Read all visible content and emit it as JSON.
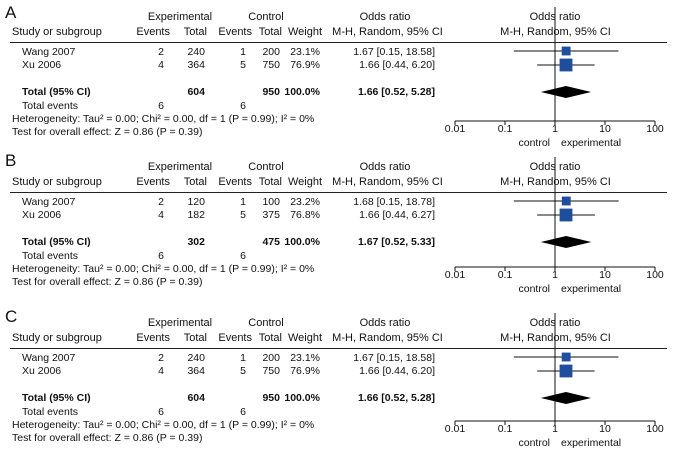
{
  "panels": [
    {
      "label": "A",
      "headers": {
        "experimental": "Experimental",
        "control": "Control",
        "or_main": "Odds ratio",
        "study": "Study or subgroup",
        "events_e": "Events",
        "total_e": "Total",
        "events_c": "Events",
        "total_c": "Total",
        "weight": "Weight",
        "method": "M-H, Random, 95% CI",
        "plot_title": "Odds ratio",
        "plot_method": "M-H, Random, 95% CI"
      },
      "studies": [
        {
          "name": "Wang 2007",
          "events_e": "2",
          "total_e": "240",
          "events_c": "1",
          "total_c": "200",
          "weight": "23.1%",
          "ci_text": "1.67 [0.15, 18.58]"
        },
        {
          "name": "Xu 2006",
          "events_e": "4",
          "total_e": "364",
          "events_c": "5",
          "total_c": "750",
          "weight": "76.9%",
          "ci_text": "1.66 [0.44, 6.20]"
        }
      ],
      "total": {
        "label": "Total (95% CI)",
        "total_e": "604",
        "total_c": "950",
        "weight": "100.0%",
        "ci_text": "1.66 [0.52, 5.28]"
      },
      "total_events": {
        "label": "Total events",
        "events_e": "6",
        "events_c": "6"
      },
      "heterogeneity": "Heterogeneity: Tau² = 0.00; Chi² = 0.00, df = 1 (P = 0.99); I² = 0%",
      "overall_effect": "Test for overall effect: Z = 0.86 (P = 0.39)",
      "axis_ticks": [
        "0.01",
        "0.1",
        "1",
        "10",
        "100"
      ],
      "axis_left_label": "control",
      "axis_right_label": "experimental"
    },
    {
      "label": "B",
      "headers": {
        "experimental": "Experimental",
        "control": "Control",
        "or_main": "Odds ratio",
        "study": "Study or subgroup",
        "events_e": "Events",
        "total_e": "Total",
        "events_c": "Events",
        "total_c": "Total",
        "weight": "Weight",
        "method": "M-H, Random, 95% CI",
        "plot_title": "Odds ratio",
        "plot_method": "M-H, Random, 95% CI"
      },
      "studies": [
        {
          "name": "Wang 2007",
          "events_e": "2",
          "total_e": "120",
          "events_c": "1",
          "total_c": "100",
          "weight": "23.2%",
          "ci_text": "1.68 [0.15, 18.78]"
        },
        {
          "name": "Xu 2006",
          "events_e": "4",
          "total_e": "182",
          "events_c": "5",
          "total_c": "375",
          "weight": "76.8%",
          "ci_text": "1.66 [0.44, 6.27]"
        }
      ],
      "total": {
        "label": "Total (95% CI)",
        "total_e": "302",
        "total_c": "475",
        "weight": "100.0%",
        "ci_text": "1.67 [0.52, 5.33]"
      },
      "total_events": {
        "label": "Total events",
        "events_e": "6",
        "events_c": "6"
      },
      "heterogeneity": "Heterogeneity: Tau² = 0.00; Chi² = 0.00, df = 1 (P = 0.99); I² = 0%",
      "overall_effect": "Test for overall effect: Z = 0.86 (P = 0.39)",
      "axis_ticks": [
        "0.01",
        "0.1",
        "1",
        "10",
        "100"
      ],
      "axis_left_label": "control",
      "axis_right_label": "experimental"
    },
    {
      "label": "C",
      "headers": {
        "experimental": "Experimental",
        "control": "Control",
        "or_main": "Odds ratio",
        "study": "Study or subgroup",
        "events_e": "Events",
        "total_e": "Total",
        "events_c": "Events",
        "total_c": "Total",
        "weight": "Weight",
        "method": "M-H, Random, 95% CI",
        "plot_title": "Odds ratio",
        "plot_method": "M-H, Random, 95% CI"
      },
      "studies": [
        {
          "name": "Wang 2007",
          "events_e": "2",
          "total_e": "240",
          "events_c": "1",
          "total_c": "200",
          "weight": "23.1%",
          "ci_text": "1.67 [0.15, 18.58]"
        },
        {
          "name": "Xu 2006",
          "events_e": "4",
          "total_e": "364",
          "events_c": "5",
          "total_c": "750",
          "weight": "76.9%",
          "ci_text": "1.66 [0.44, 6.20]"
        }
      ],
      "total": {
        "label": "Total (95% CI)",
        "total_e": "604",
        "total_c": "950",
        "weight": "100.0%",
        "ci_text": "1.66 [0.52, 5.28]"
      },
      "total_events": {
        "label": "Total events",
        "events_e": "6",
        "events_c": "6"
      },
      "heterogeneity": "Heterogeneity: Tau² = 0.00; Chi² = 0.00, df = 1 (P = 0.99); I² = 0%",
      "overall_effect": "Test for overall effect: Z = 0.86 (P = 0.39)",
      "axis_ticks": [
        "0.01",
        "0.1",
        "1",
        "10",
        "100"
      ],
      "axis_left_label": "control",
      "axis_right_label": "experimental"
    }
  ],
  "chart_data": [
    {
      "type": "forest",
      "scale": "log",
      "xlim": [
        0.01,
        100
      ],
      "reference_line": 1,
      "colors": {
        "study_marker": "#1f4e9e",
        "summary_diamond": "#000000"
      },
      "studies": [
        {
          "name": "Wang 2007",
          "or": 1.67,
          "ci": [
            0.15,
            18.58
          ],
          "weight": 23.1
        },
        {
          "name": "Xu 2006",
          "or": 1.66,
          "ci": [
            0.44,
            6.2
          ],
          "weight": 76.9
        }
      ],
      "summary": {
        "or": 1.66,
        "ci": [
          0.52,
          5.28
        ]
      }
    },
    {
      "type": "forest",
      "scale": "log",
      "xlim": [
        0.01,
        100
      ],
      "reference_line": 1,
      "colors": {
        "study_marker": "#1f4e9e",
        "summary_diamond": "#000000"
      },
      "studies": [
        {
          "name": "Wang 2007",
          "or": 1.68,
          "ci": [
            0.15,
            18.78
          ],
          "weight": 23.2
        },
        {
          "name": "Xu 2006",
          "or": 1.66,
          "ci": [
            0.44,
            6.27
          ],
          "weight": 76.8
        }
      ],
      "summary": {
        "or": 1.67,
        "ci": [
          0.52,
          5.33
        ]
      }
    },
    {
      "type": "forest",
      "scale": "log",
      "xlim": [
        0.01,
        100
      ],
      "reference_line": 1,
      "colors": {
        "study_marker": "#1f4e9e",
        "summary_diamond": "#000000"
      },
      "studies": [
        {
          "name": "Wang 2007",
          "or": 1.67,
          "ci": [
            0.15,
            18.58
          ],
          "weight": 23.1
        },
        {
          "name": "Xu 2006",
          "or": 1.66,
          "ci": [
            0.44,
            6.2
          ],
          "weight": 76.9
        }
      ],
      "summary": {
        "or": 1.66,
        "ci": [
          0.52,
          5.28
        ]
      }
    }
  ]
}
